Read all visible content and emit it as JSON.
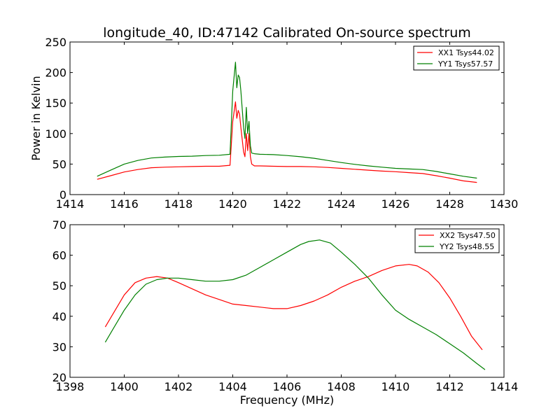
{
  "chart_data": [
    {
      "type": "line",
      "title": "longitude_40, ID:47142 Calibrated On-source spectrum",
      "xlabel": "",
      "ylabel": "Power in Kelvin",
      "xlim": [
        1414,
        1430
      ],
      "ylim": [
        0,
        250
      ],
      "xticks": [
        "1414",
        "1416",
        "1418",
        "1420",
        "1422",
        "1424",
        "1426",
        "1428",
        "1430"
      ],
      "yticks": [
        "0",
        "50",
        "100",
        "150",
        "200",
        "250"
      ],
      "legend_position": "upper-right",
      "series": [
        {
          "name": "XX1 Tsys44.02",
          "color": "#ff0000",
          "x": [
            1415.0,
            1415.5,
            1416.0,
            1416.5,
            1417.0,
            1417.5,
            1418.0,
            1418.5,
            1419.0,
            1419.5,
            1419.9,
            1420.0,
            1420.1,
            1420.15,
            1420.2,
            1420.25,
            1420.3,
            1420.4,
            1420.45,
            1420.5,
            1420.55,
            1420.6,
            1420.65,
            1420.7,
            1420.8,
            1421.0,
            1421.5,
            1422.0,
            1422.5,
            1423.0,
            1423.5,
            1424.0,
            1424.5,
            1425.0,
            1425.5,
            1426.0,
            1426.5,
            1427.0,
            1427.5,
            1428.0,
            1428.5,
            1429.0
          ],
          "values": [
            25,
            31,
            37,
            41,
            44,
            45,
            45.5,
            46,
            46.5,
            46.5,
            48,
            120,
            152,
            125,
            138,
            132,
            110,
            70,
            62,
            100,
            72,
            100,
            62,
            50,
            47,
            47,
            46.5,
            46,
            46,
            45.5,
            44.5,
            43,
            41.5,
            40,
            38.5,
            37.5,
            36,
            34.5,
            31,
            27,
            22.5,
            20
          ]
        },
        {
          "name": "YY1 Tsys57.57",
          "color": "#008000",
          "x": [
            1415.0,
            1415.5,
            1416.0,
            1416.5,
            1417.0,
            1417.5,
            1418.0,
            1418.5,
            1419.0,
            1419.5,
            1419.9,
            1420.0,
            1420.1,
            1420.15,
            1420.2,
            1420.25,
            1420.3,
            1420.4,
            1420.45,
            1420.5,
            1420.55,
            1420.6,
            1420.65,
            1420.7,
            1420.8,
            1421.0,
            1421.5,
            1422.0,
            1422.5,
            1423.0,
            1423.5,
            1424.0,
            1424.5,
            1425.0,
            1425.5,
            1426.0,
            1426.5,
            1427.0,
            1427.5,
            1428.0,
            1428.5,
            1429.0
          ],
          "values": [
            30,
            40,
            50,
            56,
            60,
            61.5,
            62.5,
            63,
            64,
            64.5,
            66,
            170,
            217,
            175,
            196,
            192,
            170,
            110,
            92,
            143,
            100,
            120,
            80,
            68,
            67,
            66,
            65.5,
            64,
            62,
            59.5,
            56,
            52.5,
            49.5,
            47,
            45,
            43,
            42,
            41,
            38,
            34,
            30,
            27
          ]
        }
      ]
    },
    {
      "type": "line",
      "title": "",
      "xlabel": "Frequency (MHz)",
      "ylabel": "",
      "xlim": [
        1398,
        1414
      ],
      "ylim": [
        20,
        70
      ],
      "xticks": [
        "1398",
        "1400",
        "1402",
        "1404",
        "1406",
        "1408",
        "1410",
        "1412",
        "1414"
      ],
      "yticks": [
        "20",
        "30",
        "40",
        "50",
        "60",
        "70"
      ],
      "legend_position": "upper-right",
      "series": [
        {
          "name": "XX2 Tsys47.50",
          "color": "#ff0000",
          "x": [
            1399.3,
            1399.6,
            1400.0,
            1400.4,
            1400.8,
            1401.2,
            1401.6,
            1402.0,
            1402.5,
            1403.0,
            1403.5,
            1404.0,
            1404.5,
            1405.0,
            1405.5,
            1406.0,
            1406.5,
            1407.0,
            1407.5,
            1408.0,
            1408.5,
            1409.0,
            1409.5,
            1410.0,
            1410.5,
            1410.8,
            1411.2,
            1411.6,
            1412.0,
            1412.4,
            1412.8,
            1413.2
          ],
          "values": [
            36.5,
            41,
            47,
            51,
            52.5,
            53,
            52.5,
            51,
            49,
            47,
            45.5,
            44,
            43.5,
            43,
            42.5,
            42.5,
            43.5,
            45,
            47,
            49.5,
            51.5,
            53,
            55,
            56.5,
            57,
            56.5,
            54.5,
            51,
            46,
            40,
            33.5,
            29
          ]
        },
        {
          "name": "YY2 Tsys48.55",
          "color": "#008000",
          "x": [
            1399.3,
            1399.6,
            1400.0,
            1400.4,
            1400.8,
            1401.2,
            1401.6,
            1402.0,
            1402.5,
            1403.0,
            1403.5,
            1404.0,
            1404.5,
            1405.0,
            1405.5,
            1406.0,
            1406.5,
            1406.8,
            1407.2,
            1407.6,
            1408.0,
            1408.5,
            1409.0,
            1409.5,
            1410.0,
            1410.5,
            1411.0,
            1411.5,
            1412.0,
            1412.5,
            1413.0,
            1413.3
          ],
          "values": [
            31.5,
            36,
            42,
            47,
            50.5,
            52,
            52.5,
            52.5,
            52,
            51.5,
            51.5,
            52,
            53.5,
            56,
            58.5,
            61,
            63.5,
            64.5,
            65,
            64,
            61,
            57,
            52.5,
            47,
            42,
            39,
            36.5,
            34,
            31,
            28,
            24.5,
            22.5
          ]
        }
      ]
    }
  ]
}
